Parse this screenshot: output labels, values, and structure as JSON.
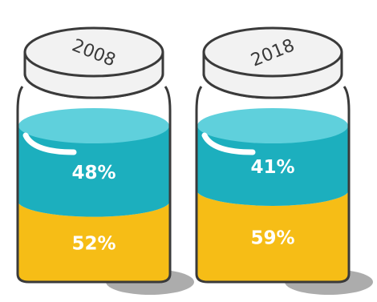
{
  "chart_data": {
    "type": "bar",
    "stacked": true,
    "categories": [
      "2008",
      "2018"
    ],
    "series": [
      {
        "values": [
          52,
          59
        ],
        "color": "#f6bd16",
        "position": "bottom"
      },
      {
        "values": [
          48,
          41
        ],
        "color": "#1cafbe",
        "position": "top"
      }
    ],
    "value_labels": {
      "top": [
        "48%",
        "41%"
      ],
      "bottom": [
        "52%",
        "59%"
      ]
    },
    "style": "jars",
    "colors": {
      "outline": "#3a3a3a",
      "lid": "#f2f2f2",
      "teal_top": "#5fd0dc",
      "shadow": "#9e9e9e"
    }
  }
}
